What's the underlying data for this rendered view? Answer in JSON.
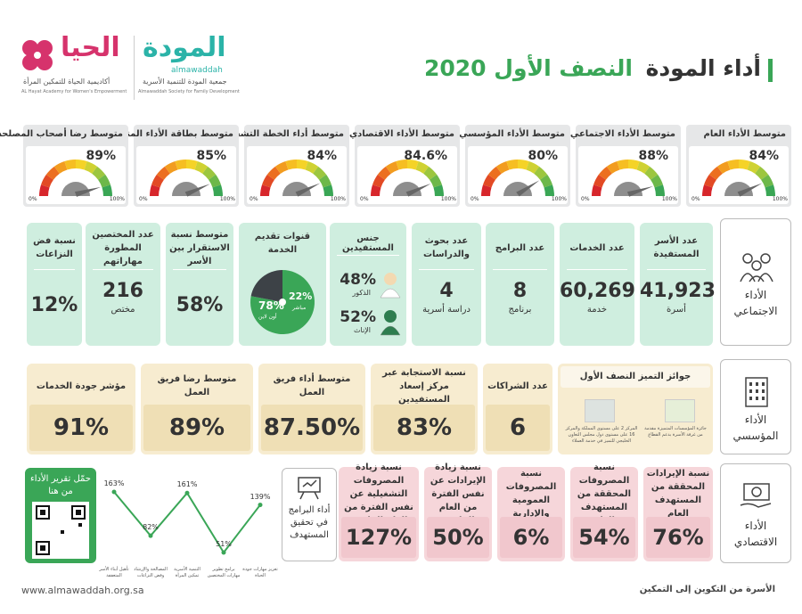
{
  "header": {
    "title_main": "أداء المودة",
    "title_highlight": "النصف الأول 2020"
  },
  "logos": {
    "mawaddah_ar": "المودة",
    "mawaddah_en": "almawaddah",
    "mawaddah_name_ar": "جمعية المودة للتنمية الأسرية",
    "mawaddah_name_en": "Almawaddah Society for Family Development",
    "hayat_ar": "الحيا",
    "hayat_name_ar": "أكاديمية الحياة للتمكين المرأة",
    "hayat_name_en": "AL Hayat Academy for Women's Empowerment"
  },
  "gauges": {
    "min_label": "0%",
    "max_label": "100%",
    "items": [
      {
        "label": "متوسط الأداء العام",
        "value": 84,
        "value_label": "84%"
      },
      {
        "label": "متوسط الأداء الاجتماعي",
        "value": 88,
        "value_label": "88%"
      },
      {
        "label": "متوسط الأداء المؤسسي",
        "value": 80,
        "value_label": "80%"
      },
      {
        "label": "متوسط الأداء الاقتصادي",
        "value": 84.6,
        "value_label": "84.6%"
      },
      {
        "label": "متوسط أداء الخطة التشغيلية",
        "value": 84,
        "value_label": "84%"
      },
      {
        "label": "متوسط بطاقة الأداء المتوازن",
        "value": 85,
        "value_label": "85%"
      },
      {
        "label": "متوسط رضا أصحاب المصلحة",
        "value": 89,
        "value_label": "89%"
      }
    ]
  },
  "social": {
    "label": "الأداء الاجتماعي",
    "cards": [
      {
        "title": "عدد الأسر المستفيدة",
        "value": "41,923",
        "unit": "أسرة"
      },
      {
        "title": "عدد الخدمات",
        "value": "60,269",
        "unit": "خدمة"
      },
      {
        "title": "عدد البرامج",
        "value": "8",
        "unit": "برنامج"
      },
      {
        "title": "عدد بحوث والدراسات",
        "value": "4",
        "unit": "دراسة أسرية"
      }
    ],
    "gender": {
      "title": "جنس المستفيدين",
      "male_value": "48%",
      "male_label": "الذكور",
      "female_value": "52%",
      "female_label": "الإناث"
    },
    "channels": {
      "title": "قنوات تقديم الخدمة",
      "segments": [
        {
          "label": "أون لاين",
          "value": 78,
          "value_label": "78%"
        },
        {
          "label": "مباشر",
          "value": 22,
          "value_label": "22%"
        }
      ]
    },
    "cards2": [
      {
        "title": "متوسط نسبة الاستقرار بين الأسر",
        "value": "58%"
      },
      {
        "title": "عدد المختصين المطورة مهاراتهم",
        "value": "216",
        "unit": "مختص"
      },
      {
        "title": "نسبة فض النزاعات",
        "value": "12%"
      }
    ]
  },
  "institutional": {
    "label": "الأداء المؤسسي",
    "awards": {
      "title": "جوائز التميز النصف الأول",
      "items": [
        "جائزة المؤسسات المتميزة مقدمة من غرفة الأسرة بدعم القطاع",
        "المركز 2 على مستوى المملكة والمركز 16 على مستوى دول مجلس التعاون الخليجي للتميز في خدمة العملاء"
      ]
    },
    "cards": [
      {
        "title": "عدد الشراكات",
        "value": "6"
      },
      {
        "title": "نسبة الاستجابة عبر مركز إسعاد المستفيدين",
        "value": "83%"
      },
      {
        "title": "متوسط أداء فريق العمل",
        "value": "87.50%"
      },
      {
        "title": "متوسط رضا فريق العمل",
        "value": "89%"
      },
      {
        "title": "مؤشر جودة الخدمات",
        "value": "91%"
      }
    ]
  },
  "economic": {
    "label": "الأداء الاقتصادي",
    "cards": [
      {
        "title": "نسبة الإيرادات المحققة من المستهدف العام",
        "value": "76%"
      },
      {
        "title": "نسبة المصروفات المحققة من المستهدف العام",
        "value": "54%"
      },
      {
        "title": "نسبة المصروفات العمومية والإدارية",
        "value": "6%"
      },
      {
        "title": "نسبة زيادة الإيرادات عن نفس الفترة من العام الماضي",
        "value": "50%"
      },
      {
        "title": "نسبة زيادة المصروفات التشغيلية عن نفس الفترة من العام الماضي",
        "value": "127%"
      }
    ]
  },
  "programs": {
    "title": "أداء البرامج في تحقيق المستهدف",
    "categories": [
      "تأهيل أبناء الأسر المتعففة",
      "المصالحة والإرشاد وفض النزاعات",
      "التنمية الأسرية تمكين المرأة",
      "برامج تطوير مهارات المختصين",
      "تعزيز مهارات جودة الحياة"
    ],
    "values": [
      163,
      82,
      161,
      51,
      139
    ],
    "value_labels": [
      "163%",
      "82%",
      "161%",
      "51%",
      "139%"
    ]
  },
  "download": {
    "text": "حمّل تقرير الأداء من هنا"
  },
  "footer": {
    "website": "www.almawaddah.org.sa",
    "slogan": "الأسرة من التكوين إلى التمكين"
  }
}
